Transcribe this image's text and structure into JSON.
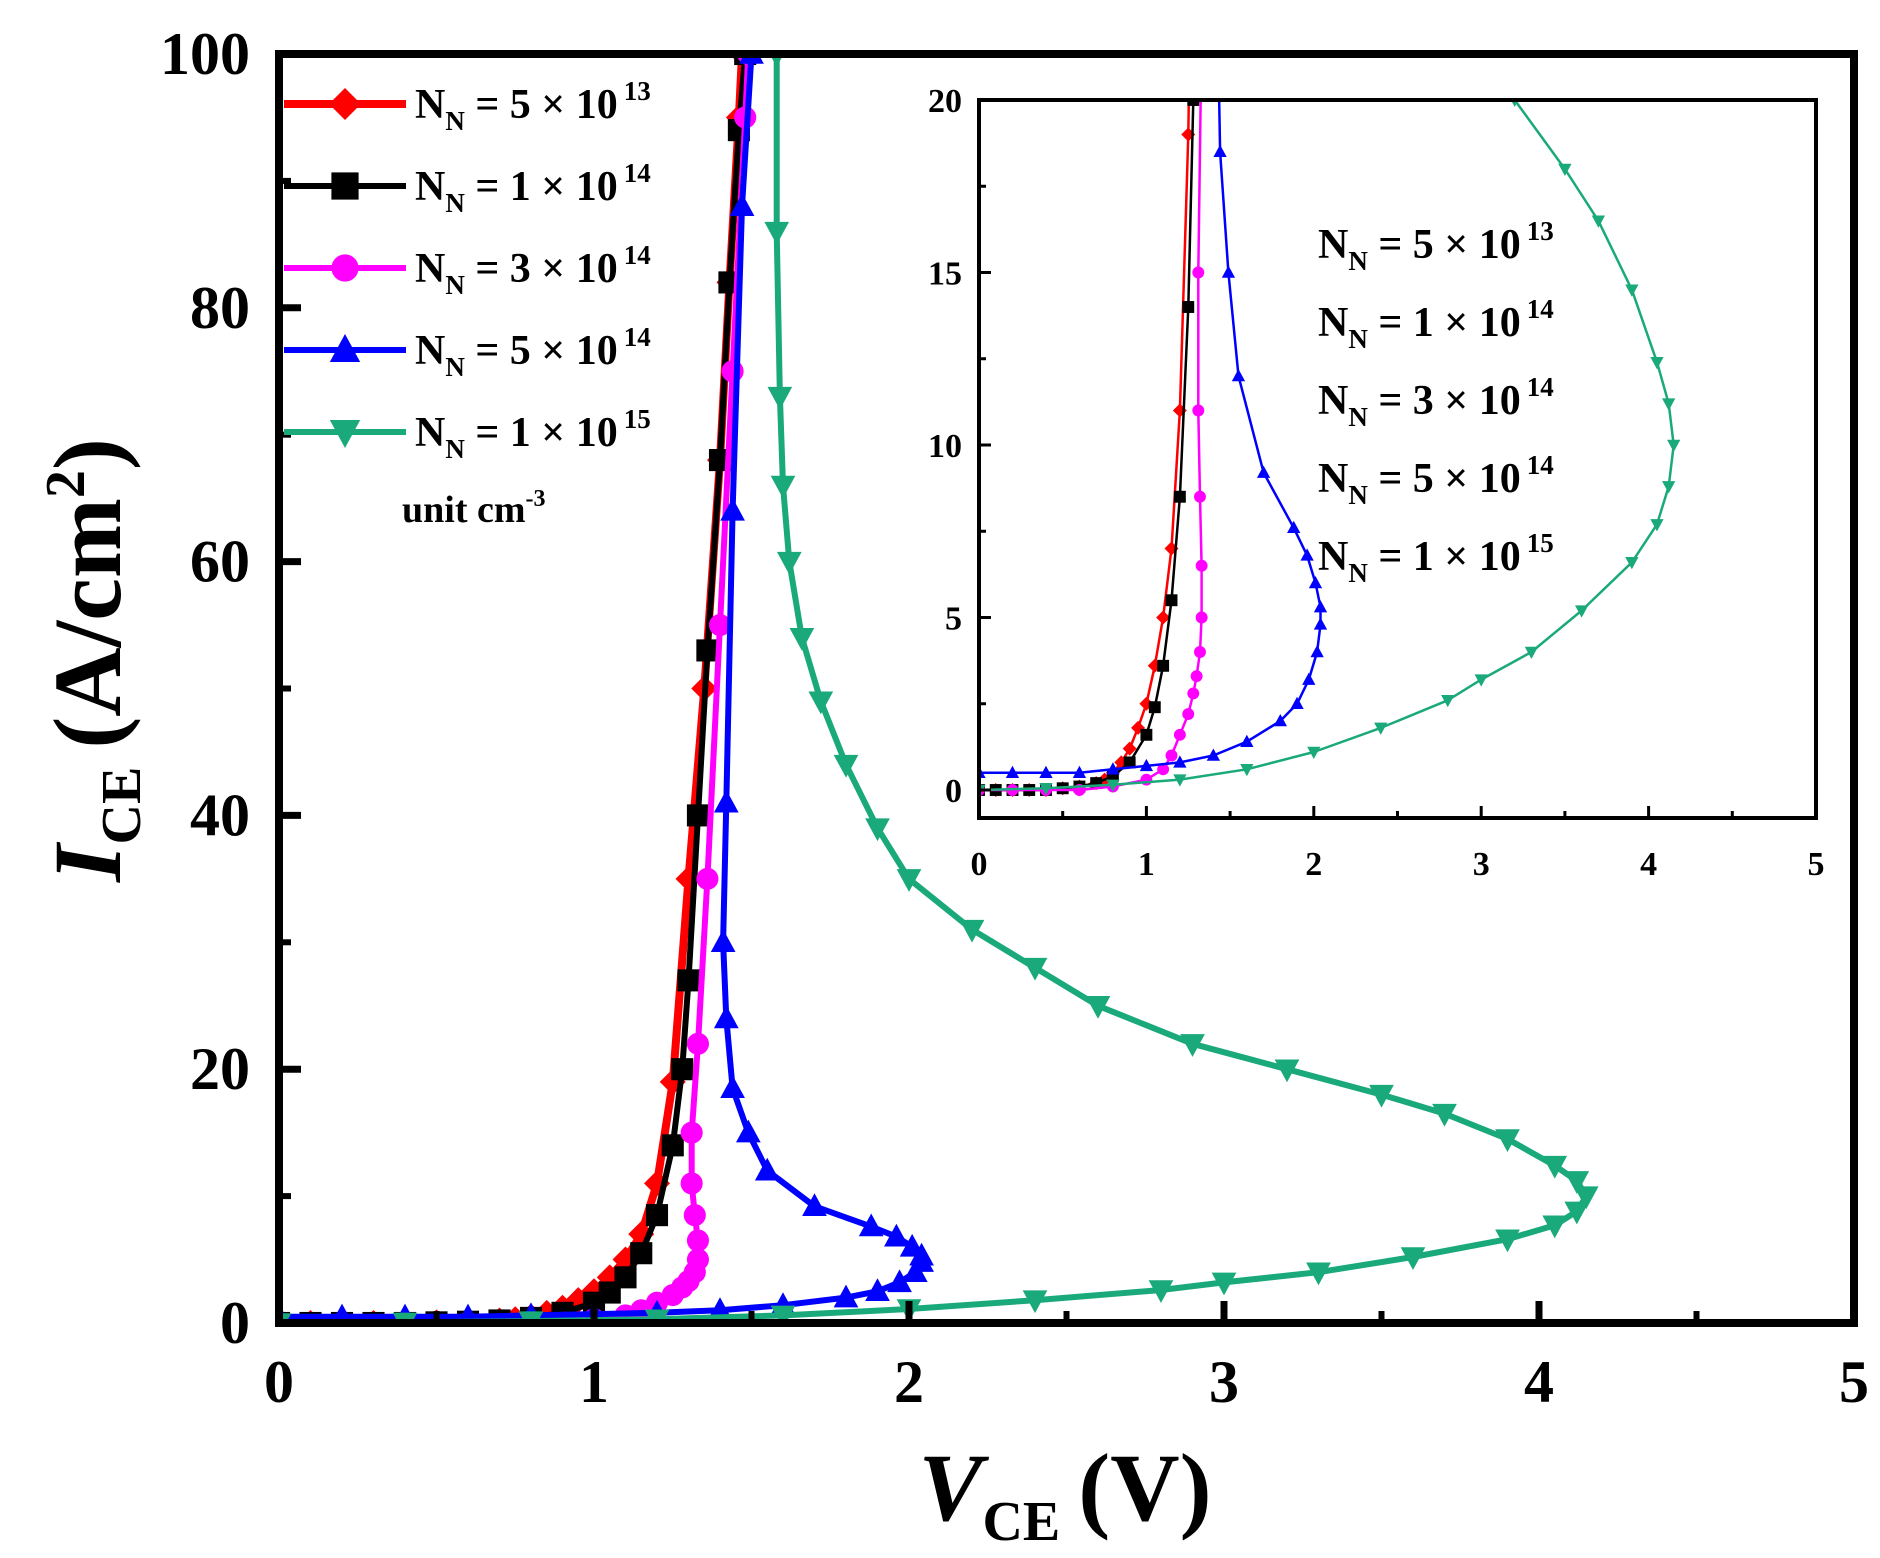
{
  "chart_data": {
    "type": "line",
    "xlabel": {
      "main": "V",
      "sub": "CE",
      "unit": "(V)"
    },
    "ylabel": {
      "main": "I",
      "sub": "CE",
      "unit": "(A/cm",
      "unit_sup": "2",
      "unit_end": ")"
    },
    "xlim": [
      0,
      5
    ],
    "ylim": [
      0,
      100
    ],
    "xticks": [
      "0",
      "1",
      "2",
      "3",
      "4",
      "5"
    ],
    "yticks": [
      "0",
      "20",
      "40",
      "60",
      "80",
      "100"
    ],
    "legend": {
      "placement": "top-left",
      "unit_note": "unit cm",
      "unit_note_sup": "-3"
    },
    "series": [
      {
        "name": "N_N = 5 × 10^13",
        "label_main": "N",
        "label_sub": "N",
        "label_mid": " = 5 × 10",
        "label_sup": "13",
        "color": "#ff0000",
        "marker": "diamond",
        "x": [
          0.0,
          0.1,
          0.2,
          0.3,
          0.4,
          0.5,
          0.6,
          0.7,
          0.75,
          0.8,
          0.85,
          0.9,
          0.95,
          1.0,
          1.05,
          1.1,
          1.15,
          1.2,
          1.25,
          1.3,
          1.35,
          1.4,
          1.43,
          1.46,
          1.47
        ],
        "y": [
          0,
          0,
          0,
          0,
          0,
          0.05,
          0.1,
          0.2,
          0.3,
          0.5,
          0.8,
          1.2,
          1.8,
          2.5,
          3.6,
          5,
          7,
          11,
          19,
          35,
          50,
          68,
          82,
          95,
          100
        ]
      },
      {
        "name": "N_N = 1 × 10^14",
        "label_main": "N",
        "label_sub": "N",
        "label_mid": " = 1 × 10",
        "label_sup": "14",
        "color": "#000000",
        "marker": "square",
        "x": [
          0.0,
          0.1,
          0.2,
          0.3,
          0.4,
          0.5,
          0.6,
          0.7,
          0.8,
          0.9,
          1.0,
          1.05,
          1.1,
          1.15,
          1.2,
          1.25,
          1.28,
          1.3,
          1.33,
          1.36,
          1.4,
          1.43,
          1.46,
          1.48
        ],
        "y": [
          0,
          0,
          0,
          0,
          0,
          0.05,
          0.1,
          0.2,
          0.4,
          0.8,
          1.6,
          2.4,
          3.6,
          5.5,
          8.5,
          14,
          20,
          27,
          40,
          53,
          68,
          82,
          94,
          100
        ]
      },
      {
        "name": "N_N = 3 × 10^14",
        "label_main": "N",
        "label_sub": "N",
        "label_mid": " = 3 × 10",
        "label_sup": "14",
        "color": "#ff00ff",
        "marker": "circle",
        "x": [
          0.0,
          0.2,
          0.4,
          0.6,
          0.8,
          1.0,
          1.1,
          1.15,
          1.2,
          1.25,
          1.28,
          1.3,
          1.32,
          1.33,
          1.33,
          1.32,
          1.31,
          1.31,
          1.33,
          1.36,
          1.4,
          1.44,
          1.48,
          1.49
        ],
        "y": [
          0,
          0,
          0,
          0,
          0.1,
          0.3,
          0.6,
          1.0,
          1.6,
          2.2,
          2.8,
          3.3,
          4.0,
          5.0,
          6.5,
          8.5,
          11,
          15,
          22,
          35,
          55,
          75,
          95,
          100
        ]
      },
      {
        "name": "N_N = 5 × 10^14",
        "label_main": "N",
        "label_sub": "N",
        "label_mid": " = 5 × 10",
        "label_sup": "14",
        "color": "#0000ff",
        "marker": "triangle-up",
        "x": [
          0.0,
          0.2,
          0.4,
          0.6,
          0.8,
          1.0,
          1.2,
          1.4,
          1.6,
          1.8,
          1.9,
          1.97,
          2.02,
          2.04,
          2.04,
          2.01,
          1.96,
          1.88,
          1.7,
          1.55,
          1.49,
          1.44,
          1.42,
          1.41,
          1.42,
          1.44,
          1.47,
          1.5
        ],
        "y": [
          0.5,
          0.5,
          0.5,
          0.5,
          0.6,
          0.7,
          0.8,
          1.0,
          1.4,
          2.0,
          2.5,
          3.2,
          4.0,
          4.8,
          5.3,
          6.0,
          6.8,
          7.6,
          9.2,
          12,
          15,
          18.5,
          24,
          30,
          41,
          64,
          88,
          100
        ]
      },
      {
        "name": "N_N = 1 × 10^15",
        "label_main": "N",
        "label_sub": "N",
        "label_mid": " = 1 × 10",
        "label_sup": "15",
        "color": "#1aa97a",
        "marker": "triangle-down",
        "x": [
          0.0,
          0.4,
          0.8,
          1.2,
          1.6,
          2.0,
          2.4,
          2.8,
          3.0,
          3.3,
          3.6,
          3.9,
          4.05,
          4.12,
          4.15,
          4.12,
          4.05,
          3.9,
          3.7,
          3.5,
          3.2,
          2.9,
          2.6,
          2.4,
          2.2,
          2.0,
          1.9,
          1.8,
          1.72,
          1.66,
          1.62,
          1.6,
          1.59,
          1.58,
          1.58
        ],
        "y": [
          0,
          0.05,
          0.15,
          0.3,
          0.6,
          1.1,
          1.8,
          2.6,
          3.2,
          4.0,
          5.2,
          6.6,
          7.7,
          8.8,
          10,
          11.2,
          12.4,
          14.5,
          16.5,
          18,
          20,
          22,
          25,
          28,
          31,
          35,
          39,
          44,
          49,
          54,
          60,
          66,
          73,
          86,
          100
        ]
      }
    ],
    "inset": {
      "xlim": [
        0,
        5
      ],
      "ylim": [
        0,
        20
      ],
      "xticks": [
        "0",
        "1",
        "2",
        "3",
        "4",
        "5"
      ],
      "yticks": [
        "0",
        "5",
        "10",
        "15",
        "20"
      ],
      "labels": [
        {
          "main": "N",
          "sub": "N",
          "mid": " = 5 × 10",
          "sup": "13"
        },
        {
          "main": "N",
          "sub": "N",
          "mid": " = 1 × 10",
          "sup": "14"
        },
        {
          "main": "N",
          "sub": "N",
          "mid": " = 3 × 10",
          "sup": "14"
        },
        {
          "main": "N",
          "sub": "N",
          "mid": " = 5 × 10",
          "sup": "14"
        },
        {
          "main": "N",
          "sub": "N",
          "mid": " = 1 × 10",
          "sup": "15"
        }
      ]
    }
  }
}
